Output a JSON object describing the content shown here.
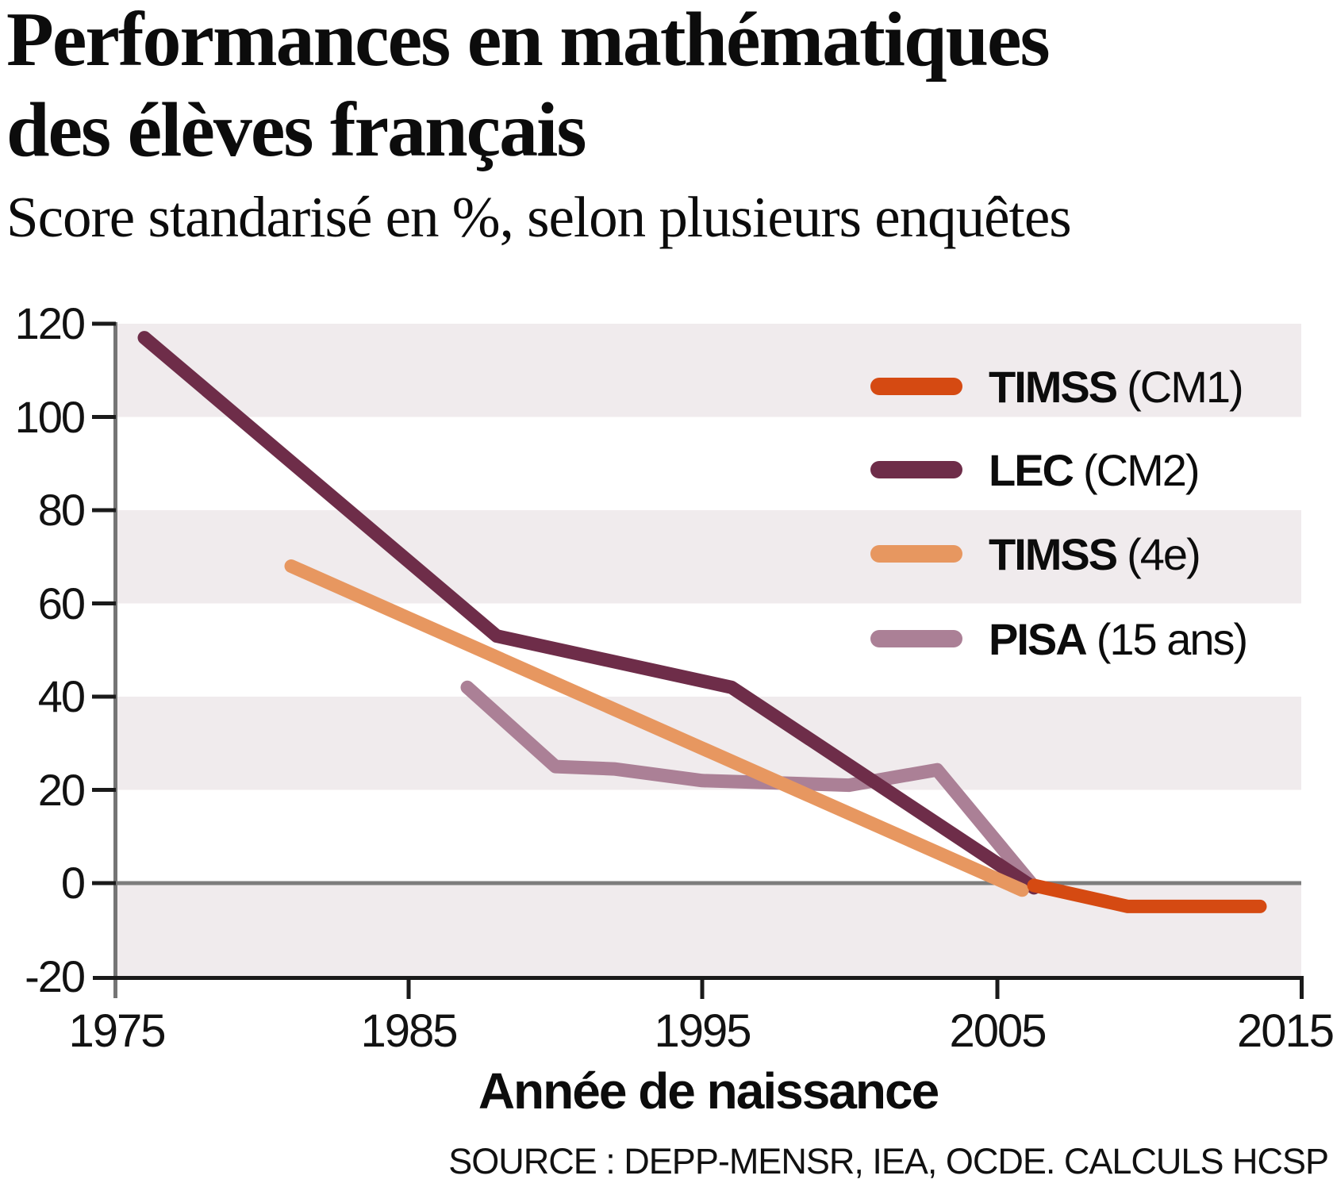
{
  "header": {
    "title_line1": "Performances en mathématiques",
    "title_line2": "des élèves français",
    "subtitle": "Score standarisé en %, selon plusieurs enquêtes"
  },
  "chart_data": {
    "type": "line",
    "title": "Performances en mathématiques des élèves français",
    "subtitle": "Score standarisé en %, selon plusieurs enquêtes",
    "xlabel": "Année de naissance",
    "source": "SOURCE : DEPP-MENSR, IEA, OCDE. CALCULS HCSP",
    "xlim": [
      1975,
      2015
    ],
    "ylim": [
      -20,
      120
    ],
    "xticks": [
      "1975",
      "1985",
      "1995",
      "2005",
      "2015"
    ],
    "yticks": [
      "120",
      "100",
      "80",
      "60",
      "40",
      "20",
      "0",
      "-20"
    ],
    "grid": "off",
    "band_color": "#f0ebed",
    "band_fill_ranges": [
      [
        100,
        120
      ],
      [
        60,
        80
      ],
      [
        20,
        40
      ],
      [
        -20,
        0
      ]
    ],
    "zero_line_color": "#7d7d7d",
    "legend_position": "upper right",
    "series": [
      {
        "name": "TIMSS",
        "qualifier": "(CM1)",
        "color": "#d54a12",
        "points": [
          [
            2006.3,
            -0.5
          ],
          [
            2009.5,
            -5
          ],
          [
            2014,
            -5
          ]
        ]
      },
      {
        "name": "LEC",
        "qualifier": "(CM2)",
        "color": "#6e2d49",
        "points": [
          [
            1976,
            117
          ],
          [
            1988,
            53
          ],
          [
            1996,
            42
          ],
          [
            2006.3,
            -1
          ]
        ]
      },
      {
        "name": "TIMSS",
        "qualifier": "(4e)",
        "color": "#e79760",
        "points": [
          [
            1981,
            68
          ],
          [
            2005.9,
            -1.5
          ]
        ]
      },
      {
        "name": "PISA",
        "qualifier": "(15 ans)",
        "color": "#ab8096",
        "points": [
          [
            1987,
            42
          ],
          [
            1990,
            25
          ],
          [
            1992,
            24.5
          ],
          [
            1995,
            22
          ],
          [
            2000,
            21
          ],
          [
            2003,
            24.3
          ],
          [
            2006.2,
            0
          ]
        ]
      }
    ]
  }
}
